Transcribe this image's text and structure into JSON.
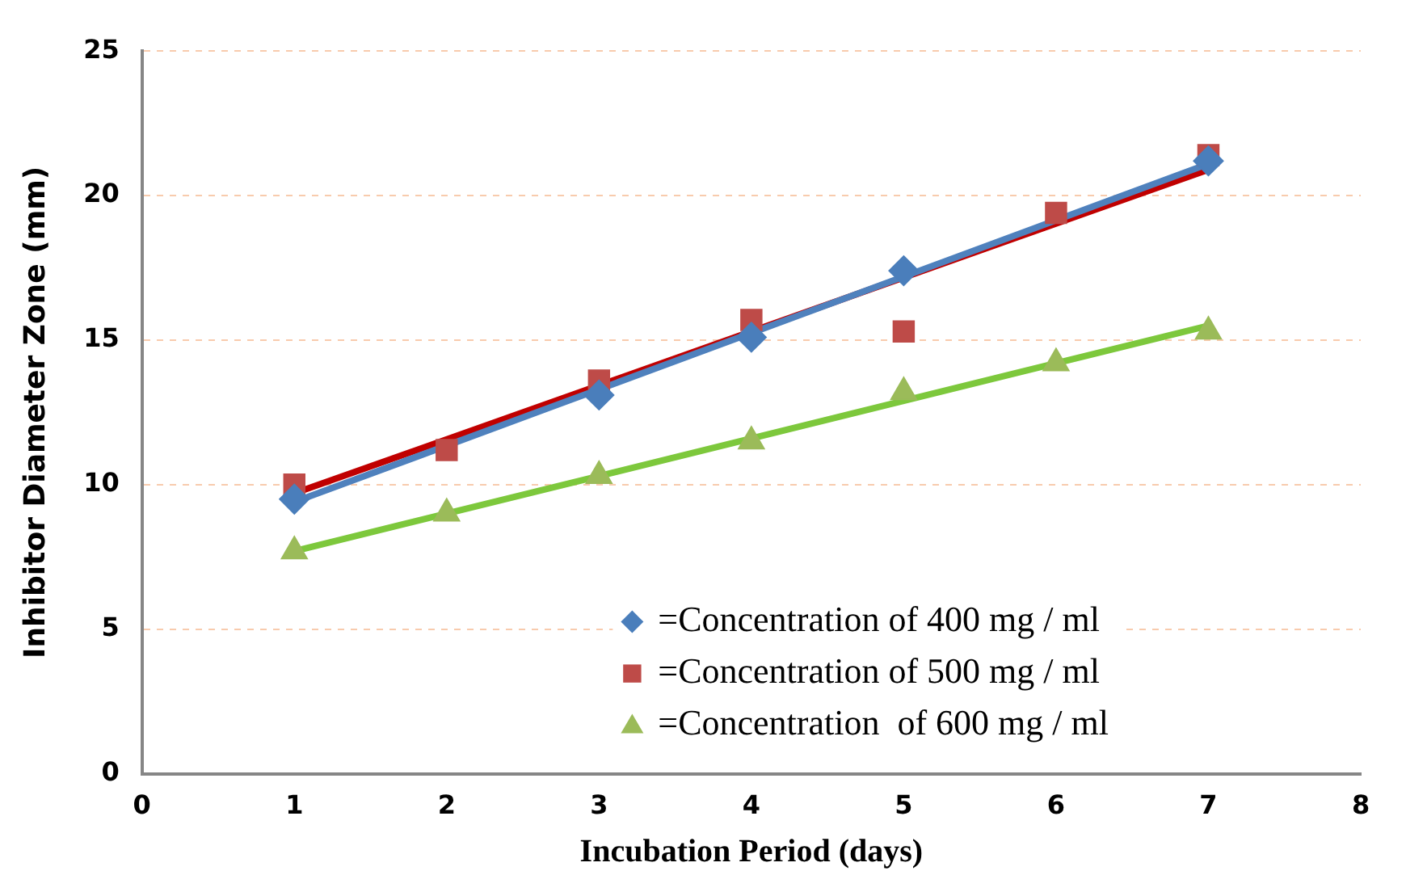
{
  "chart_data": {
    "type": "scatter",
    "xlabel": "Incubation Period (days)",
    "ylabel": "Inhibitor Diameter Zone (mm)",
    "xlim": [
      0,
      8
    ],
    "xticks": [
      0,
      1,
      2,
      3,
      4,
      5,
      6,
      7,
      8
    ],
    "ylim": [
      0,
      25
    ],
    "yticks": [
      0,
      5,
      10,
      15,
      20,
      25
    ],
    "grid": "y",
    "legend": "bottom right",
    "series": [
      {
        "name": "=Concentration of 400 mg / ml",
        "color": "#4a7ebb",
        "marker": "diamond",
        "x": [
          1,
          2,
          3,
          4,
          5,
          6,
          7
        ],
        "values": [
          9.5,
          null,
          13.1,
          15.1,
          17.4,
          null,
          21.2
        ]
      },
      {
        "name": "=Concentration of 500 mg / ml",
        "color": "#be4b48",
        "marker": "square",
        "x": [
          1,
          2,
          3,
          4,
          5,
          6,
          7
        ],
        "values": [
          10.0,
          11.2,
          13.6,
          15.7,
          15.3,
          19.4,
          21.4
        ]
      },
      {
        "name": "=Concentration  of 600 mg / ml",
        "color": "#9bbb59",
        "marker": "triangle",
        "x": [
          1,
          2,
          3,
          4,
          5,
          6,
          7
        ],
        "values": [
          7.7,
          9.0,
          10.3,
          11.5,
          13.2,
          14.2,
          15.3
        ]
      },
      {
        "type": "line",
        "color": "#4f81bd",
        "marker": "none",
        "x": [
          1,
          7
        ],
        "values": [
          9.4,
          21.1
        ]
      },
      {
        "type": "line",
        "color": "#c00000",
        "marker": "none",
        "x": [
          1,
          7
        ],
        "values": [
          9.7,
          20.9
        ]
      },
      {
        "type": "line",
        "color": "#7dc83c",
        "marker": "none",
        "x": [
          1,
          7
        ],
        "values": [
          7.7,
          15.5
        ]
      }
    ]
  }
}
